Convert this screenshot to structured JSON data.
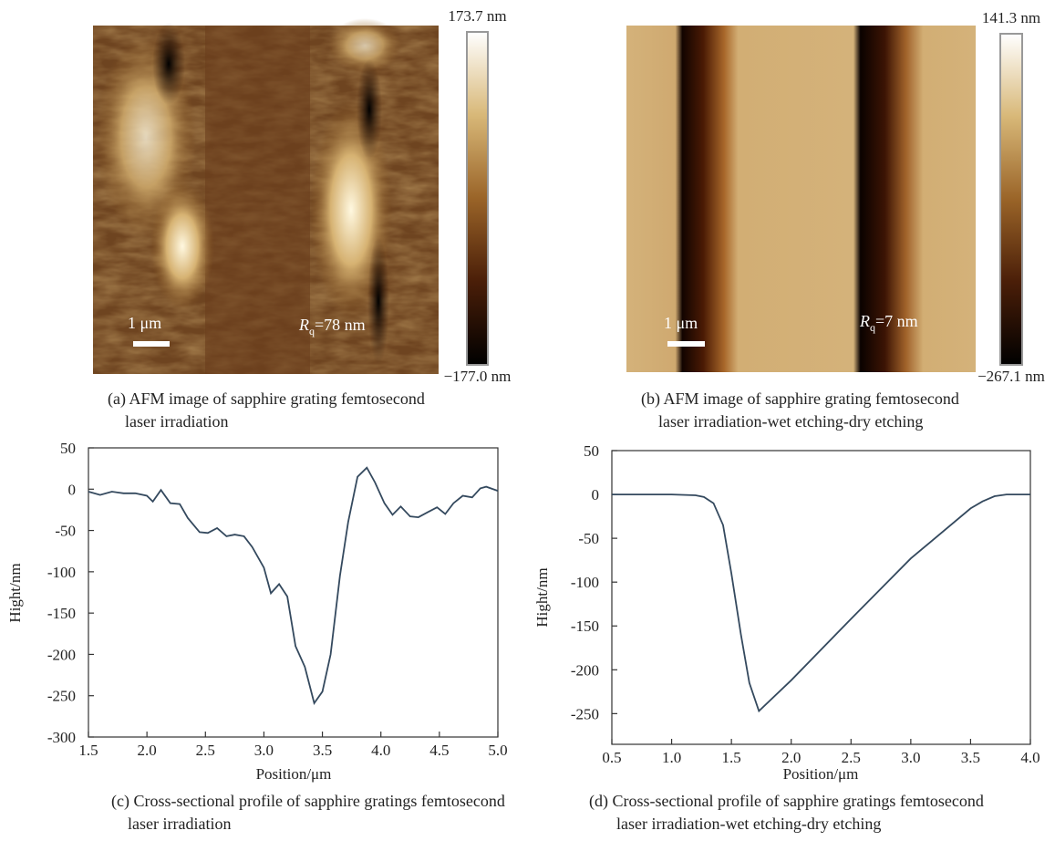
{
  "chart_data": [
    {
      "type": "image",
      "caption": [
        "(a) AFM image of sapphire grating femtosecond",
        "laser irradiation"
      ],
      "clim": [
        -177.0,
        173.7
      ],
      "colorbar_ticks": [
        {
          "value": 173.7,
          "label": "173.7 nm"
        },
        {
          "value": -177.0,
          "label": "−177.0 nm"
        }
      ],
      "colormap": [
        "#000000",
        "#4a1e08",
        "#9a6428",
        "#d8b878",
        "#ffffff"
      ],
      "scale_bar": "1 μm",
      "annotation": {
        "symbol": "R",
        "subscript": "q",
        "text": "=78 nm"
      }
    },
    {
      "type": "image",
      "caption": [
        "(b) AFM image of sapphire grating femtosecond",
        "laser irradiation-wet etching-dry etching"
      ],
      "clim": [
        -267.1,
        141.3
      ],
      "colorbar_ticks": [
        {
          "value": 141.3,
          "label": "141.3 nm"
        },
        {
          "value": -267.1,
          "label": "−267.1 nm"
        }
      ],
      "colormap": [
        "#000000",
        "#4a1e08",
        "#9a6428",
        "#d8b878",
        "#ffffff"
      ],
      "scale_bar": "1 μm",
      "annotation": {
        "symbol": "R",
        "subscript": "q",
        "text": "=7 nm"
      }
    },
    {
      "type": "line",
      "caption": [
        "(c) Cross-sectional profile of sapphire gratings femtosecond",
        "laser irradiation"
      ],
      "x_label": "Position/μm",
      "y_label": "Hight/nm",
      "xlim": [
        1.5,
        5.0
      ],
      "ylim": [
        -300,
        50
      ],
      "xticks": [
        1.5,
        {
          "value": 2,
          "label": "2.0"
        },
        2.5,
        {
          "value": 3,
          "label": "3.0"
        },
        3.5,
        {
          "value": 4,
          "label": "4.0"
        },
        4.5,
        {
          "value": 5,
          "label": "5.0"
        }
      ],
      "yticks": [
        50,
        0,
        -50,
        -100,
        -150,
        -200,
        -250,
        -300
      ],
      "x": [
        1.5,
        1.6,
        1.7,
        1.8,
        1.9,
        2.0,
        2.05,
        2.12,
        2.2,
        2.28,
        2.35,
        2.45,
        2.52,
        2.6,
        2.68,
        2.75,
        2.83,
        2.9,
        3.0,
        3.06,
        3.13,
        3.2,
        3.27,
        3.35,
        3.43,
        3.5,
        3.57,
        3.65,
        3.72,
        3.8,
        3.88,
        3.95,
        4.03,
        4.1,
        4.17,
        4.25,
        4.32,
        4.4,
        4.48,
        4.55,
        4.62,
        4.7,
        4.78,
        4.85,
        4.9,
        5.0
      ],
      "series": [
        {
          "color": "#34495e",
          "values": [
            -3,
            -7,
            -3,
            -5,
            -5,
            -8,
            -15,
            -1,
            -17,
            -18,
            -35,
            -52,
            -53,
            -47,
            -57,
            -55,
            -57,
            -70,
            -95,
            -126,
            -115,
            -130,
            -190,
            -215,
            -259,
            -245,
            -200,
            -105,
            -40,
            15,
            26,
            8,
            -17,
            -31,
            -21,
            -33,
            -34,
            -28,
            -22,
            -30,
            -17,
            -8,
            -10,
            1,
            3,
            -2
          ]
        }
      ]
    },
    {
      "type": "line",
      "caption": [
        "(d) Cross-sectional profile of sapphire gratings femtosecond",
        "laser irradiation-wet etching-dry etching"
      ],
      "x_label": "Position/μm",
      "y_label": "Hight/nm",
      "xlim": [
        0.5,
        4.0
      ],
      "ylim": [
        -285,
        50
      ],
      "xticks": [
        0.5,
        {
          "value": 1,
          "label": "1.0"
        },
        1.5,
        {
          "value": 2,
          "label": "2.0"
        },
        2.5,
        {
          "value": 3,
          "label": "3.0"
        },
        3.5,
        {
          "value": 4,
          "label": "4.0"
        }
      ],
      "yticks": [
        50,
        0,
        -50,
        -100,
        -150,
        -200,
        -250
      ],
      "x": [
        0.5,
        1.0,
        1.2,
        1.27,
        1.35,
        1.43,
        1.5,
        1.58,
        1.65,
        1.73,
        2.0,
        2.5,
        3.0,
        3.5,
        3.6,
        3.7,
        3.8,
        4.0
      ],
      "series": [
        {
          "color": "#34495e",
          "values": [
            0,
            0,
            -1,
            -3,
            -10,
            -35,
            -90,
            -160,
            -215,
            -247,
            -212,
            -142,
            -73,
            -16,
            -8,
            -2,
            0,
            0
          ]
        }
      ]
    }
  ]
}
